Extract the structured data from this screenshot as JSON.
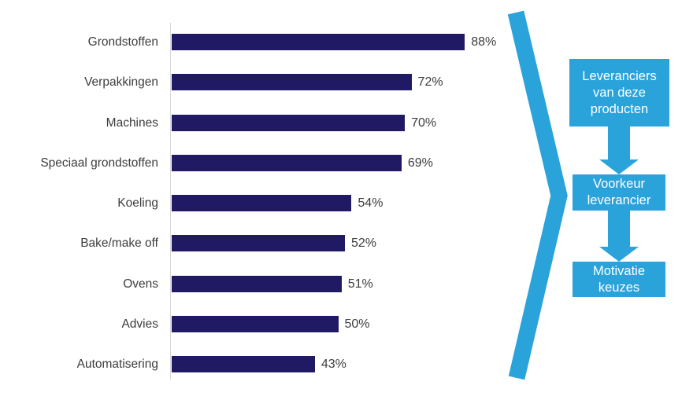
{
  "chart_data": {
    "type": "bar",
    "orientation": "horizontal",
    "title": "",
    "xlabel": "",
    "ylabel": "",
    "categories": [
      "Grondstoffen",
      "Verpakkingen",
      "Machines",
      "Speciaal grondstoffen",
      "Koeling",
      "Bake/make off",
      "Ovens",
      "Advies",
      "Automatisering"
    ],
    "values": [
      88,
      72,
      70,
      69,
      54,
      52,
      51,
      50,
      43
    ],
    "value_labels": [
      "88%",
      "72%",
      "70%",
      "69%",
      "54%",
      "52%",
      "51%",
      "50%",
      "43%"
    ],
    "xlim": [
      0,
      100
    ],
    "grid": false,
    "legend": "none",
    "bar_color": "#201a64"
  },
  "flow": {
    "steps": [
      {
        "label": "Leveranciers van deze producten"
      },
      {
        "label": "Voorkeur leverancier"
      },
      {
        "label": "Motivatie keuzes"
      }
    ]
  },
  "colors": {
    "bar_navy": "#201a64",
    "accent_blue": "#2aa3db",
    "label_text": "#3d3d3d",
    "axis_line": "#d8d8d8",
    "flow_text": "#ffffff",
    "background": "#ffffff"
  }
}
